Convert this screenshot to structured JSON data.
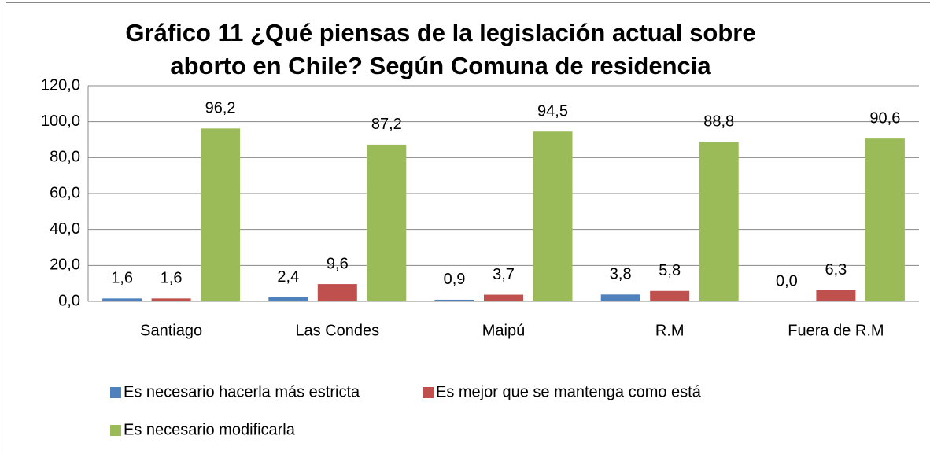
{
  "chart_data": {
    "type": "bar",
    "title": [
      "Gráfico 11 ¿Qué piensas de la legislación actual sobre",
      "aborto en Chile? Según Comuna de residencia"
    ],
    "categories": [
      "Santiago",
      "Las Condes",
      "Maipú",
      "R.M",
      "Fuera de R.M"
    ],
    "series": [
      {
        "name": "Es necesario hacerla más estricta",
        "color": "#4f81bd",
        "values": [
          1.6,
          2.4,
          0.9,
          3.8,
          0.0
        ],
        "value_labels": [
          "1,6",
          "2,4",
          "0,9",
          "3,8",
          "0,0"
        ]
      },
      {
        "name": "Es mejor que se mantenga como está",
        "color": "#c0504d",
        "values": [
          1.6,
          9.6,
          3.7,
          5.8,
          6.3
        ],
        "value_labels": [
          "1,6",
          "9,6",
          "3,7",
          "5,8",
          "6,3"
        ]
      },
      {
        "name": "Es necesario modificarla",
        "color": "#9bbb59",
        "values": [
          96.2,
          87.2,
          94.5,
          88.8,
          90.6
        ],
        "value_labels": [
          "96,2",
          "87,2",
          "94,5",
          "88,8",
          "90,6"
        ]
      }
    ],
    "ylim": [
      0,
      120
    ],
    "yticks": [
      {
        "value": 0,
        "label": "0,0"
      },
      {
        "value": 20,
        "label": "20,0"
      },
      {
        "value": 40,
        "label": "40,0"
      },
      {
        "value": 60,
        "label": "60,0"
      },
      {
        "value": 80,
        "label": "80,0"
      },
      {
        "value": 100,
        "label": "100,0"
      },
      {
        "value": 120,
        "label": "120,0"
      }
    ],
    "grid": true,
    "legend": "bottom"
  }
}
